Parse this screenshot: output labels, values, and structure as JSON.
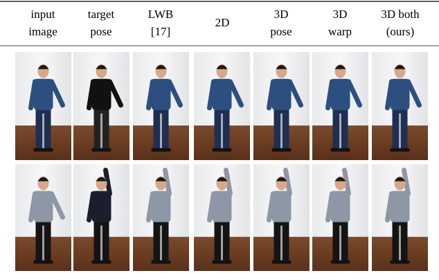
{
  "table": {
    "columns": [
      {
        "lines": [
          "input",
          "image"
        ]
      },
      {
        "lines": [
          "target",
          "pose"
        ]
      },
      {
        "lines": [
          "LWB",
          "[17]"
        ]
      },
      {
        "lines": [
          "2D"
        ]
      },
      {
        "lines": [
          "3D",
          "pose"
        ]
      },
      {
        "lines": [
          "3D",
          "warp"
        ]
      },
      {
        "lines": [
          "3D both",
          "(ours)"
        ]
      }
    ]
  }
}
